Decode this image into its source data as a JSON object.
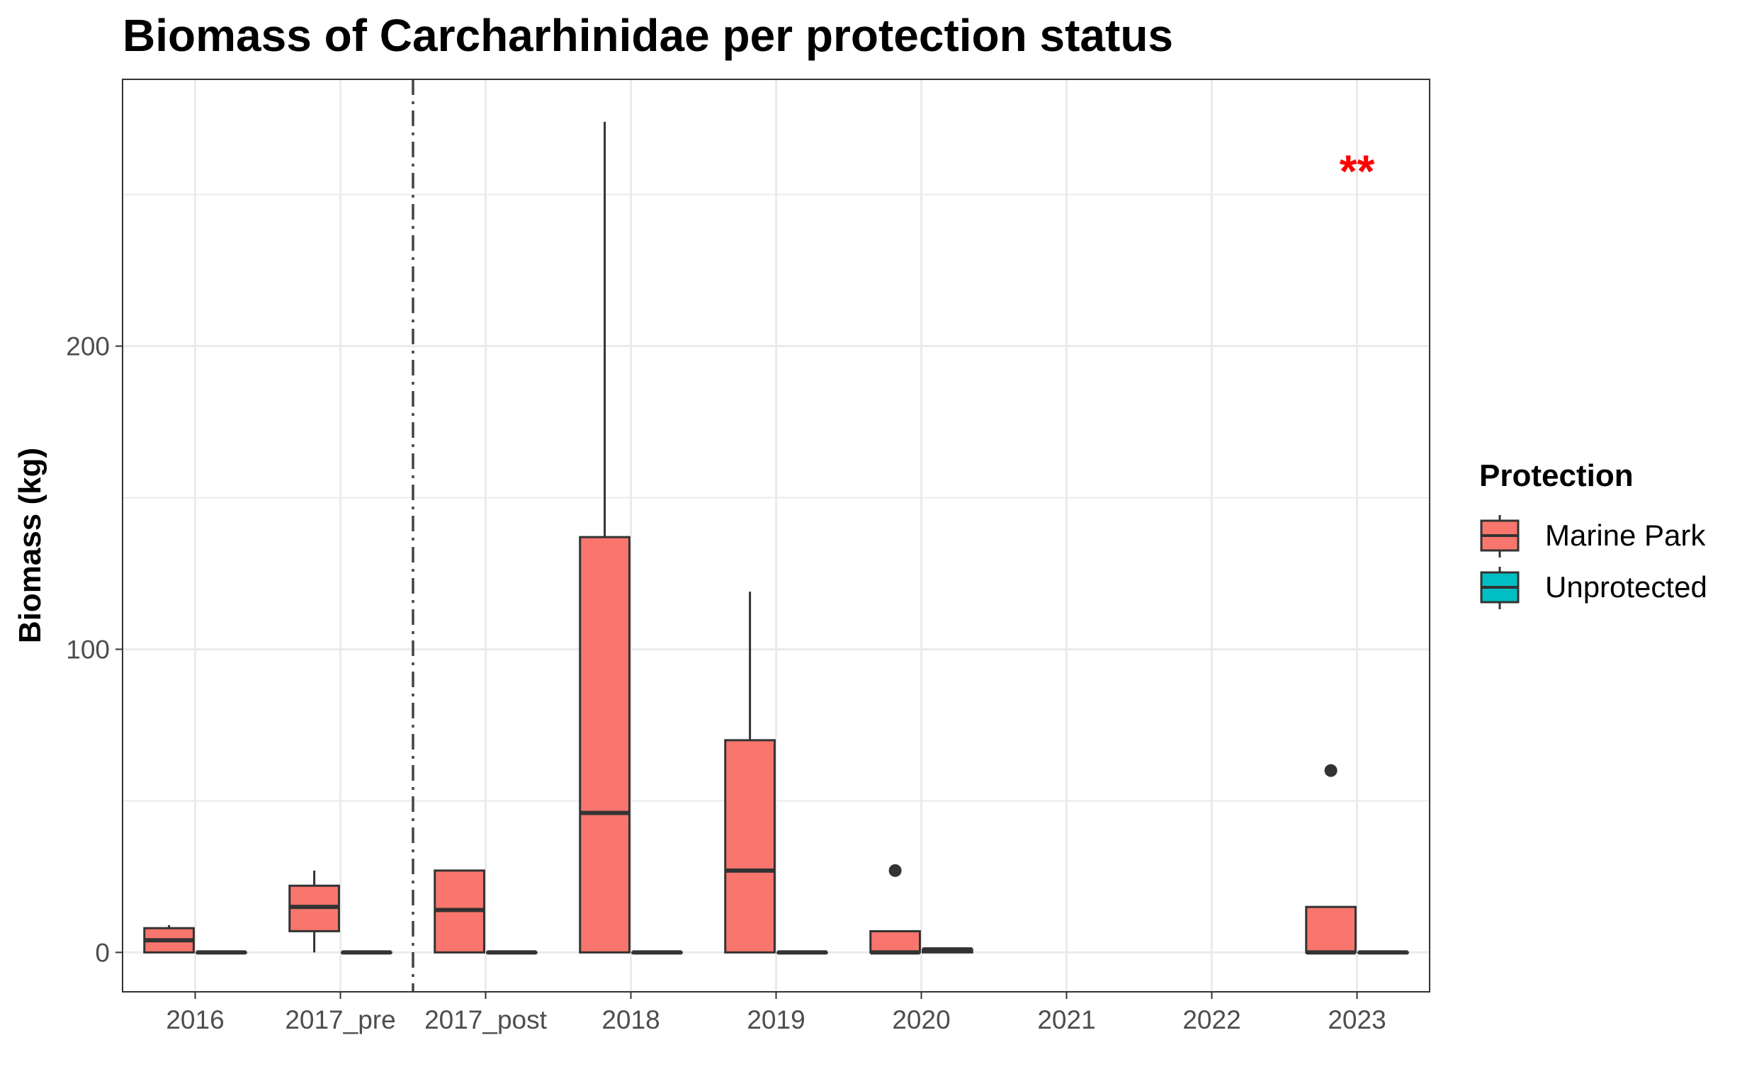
{
  "chart_data": {
    "type": "boxplot",
    "title": "Biomass of Carcharhinidae per protection status",
    "xlabel": "",
    "ylabel": "Biomass (kg)",
    "ylim": [
      -13,
      288
    ],
    "yticks": [
      0,
      100,
      200
    ],
    "categories": [
      "2016",
      "2017_pre",
      "2017_post",
      "2018",
      "2019",
      "2020",
      "2021",
      "2022",
      "2023"
    ],
    "divider_after_category": "2017_pre",
    "legend": {
      "title": "Protection",
      "position": "right"
    },
    "series": [
      {
        "name": "Marine Park",
        "color": "#F8766D",
        "boxes": [
          {
            "category": "2016",
            "min": 0,
            "q1": 0,
            "median": 4,
            "q3": 8,
            "max": 9,
            "outliers": []
          },
          {
            "category": "2017_pre",
            "min": 0,
            "q1": 7,
            "median": 15,
            "q3": 22,
            "max": 27,
            "outliers": []
          },
          {
            "category": "2017_post",
            "min": 0,
            "q1": 0,
            "median": 14,
            "q3": 27,
            "max": 27,
            "outliers": []
          },
          {
            "category": "2018",
            "min": 0,
            "q1": 0,
            "median": 46,
            "q3": 137,
            "max": 274,
            "outliers": []
          },
          {
            "category": "2019",
            "min": 0,
            "q1": 0,
            "median": 27,
            "q3": 70,
            "max": 119,
            "outliers": []
          },
          {
            "category": "2020",
            "min": 0,
            "q1": 0,
            "median": 0,
            "q3": 7,
            "max": 7,
            "outliers": [
              27
            ]
          },
          {
            "category": "2023",
            "min": 0,
            "q1": 0,
            "median": 0,
            "q3": 15,
            "max": 15,
            "outliers": [
              60
            ]
          }
        ]
      },
      {
        "name": "Unprotected",
        "color": "#00BFC4",
        "boxes": [
          {
            "category": "2016",
            "min": 0,
            "q1": 0,
            "median": 0,
            "q3": 0,
            "max": 0,
            "outliers": []
          },
          {
            "category": "2017_pre",
            "min": 0,
            "q1": 0,
            "median": 0,
            "q3": 0,
            "max": 0,
            "outliers": []
          },
          {
            "category": "2017_post",
            "min": 0,
            "q1": 0,
            "median": 0,
            "q3": 0,
            "max": 0,
            "outliers": []
          },
          {
            "category": "2018",
            "min": 0,
            "q1": 0,
            "median": 0,
            "q3": 0,
            "max": 0,
            "outliers": []
          },
          {
            "category": "2019",
            "min": 0,
            "q1": 0,
            "median": 0,
            "q3": 0,
            "max": 0,
            "outliers": []
          },
          {
            "category": "2020",
            "min": 0,
            "q1": 0,
            "median": 1,
            "q3": 1,
            "max": 1,
            "outliers": []
          },
          {
            "category": "2023",
            "min": 0,
            "q1": 0,
            "median": 0,
            "q3": 0,
            "max": 0,
            "outliers": []
          }
        ]
      }
    ],
    "annotations": [
      {
        "text": "**",
        "category": "2023",
        "y": 262,
        "color": "#ff0000"
      }
    ],
    "grid": true
  }
}
